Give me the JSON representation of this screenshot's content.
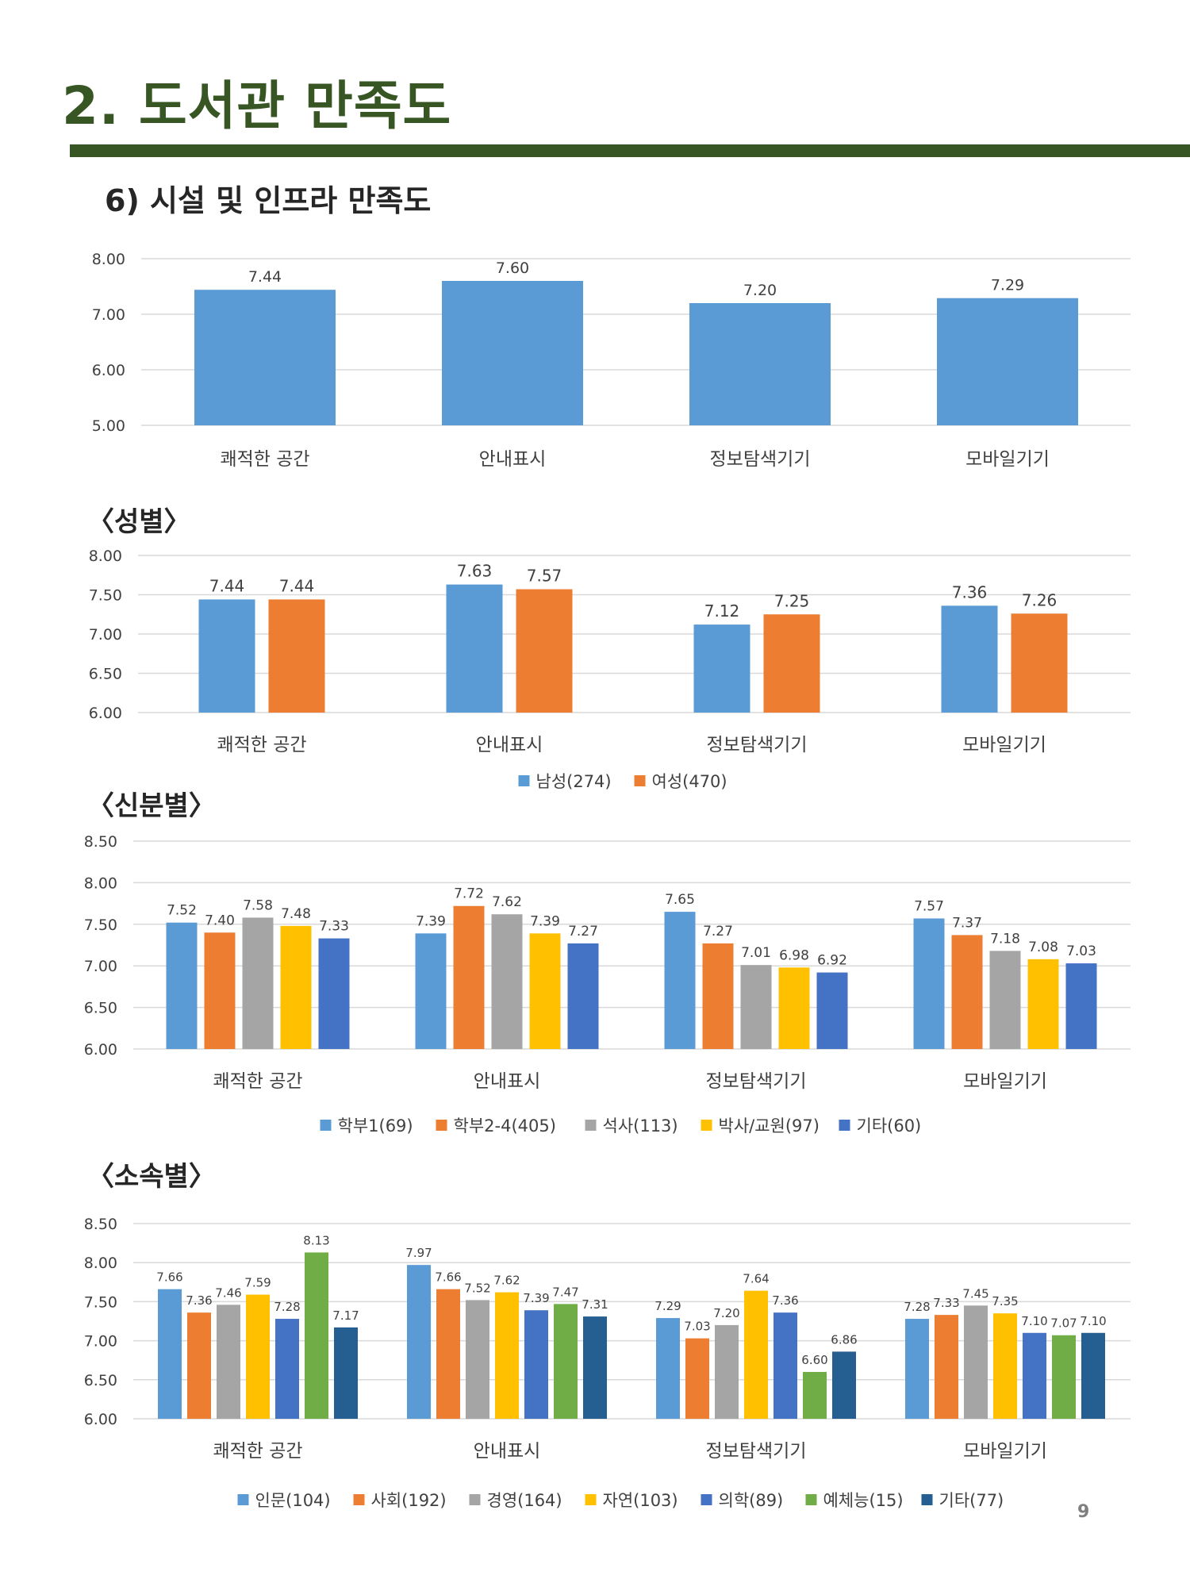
{
  "page": {
    "title": "2. 도서관 만족도",
    "subtitle": "6)  시설 및 인프라 만족도",
    "page_number": "9"
  },
  "sections": {
    "gender": "〈성별〉",
    "status": "〈신분별〉",
    "affiliation": "〈소속별〉"
  },
  "chart_data": [
    {
      "id": "overall",
      "type": "bar",
      "title": "",
      "categories": [
        "쾌적한 공간",
        "안내표시",
        "정보탐색기기",
        "모바일기기"
      ],
      "series": [
        {
          "name": "",
          "color": "#5b9bd5",
          "values": [
            7.44,
            7.6,
            7.2,
            7.29
          ]
        }
      ],
      "ylim": [
        5.0,
        8.0
      ],
      "ticks": [
        "5.00",
        "6.00",
        "7.00",
        "8.00"
      ],
      "tick_values": [
        5.0,
        6.0,
        7.0,
        8.0
      ],
      "legend": false,
      "grid": true
    },
    {
      "id": "gender",
      "type": "bar",
      "title": "〈성별〉",
      "categories": [
        "쾌적한 공간",
        "안내표시",
        "정보탐색기기",
        "모바일기기"
      ],
      "series": [
        {
          "name": "남성(274)",
          "color": "#5b9bd5",
          "values": [
            7.44,
            7.63,
            7.12,
            7.36
          ]
        },
        {
          "name": "여성(470)",
          "color": "#ed7d31",
          "values": [
            7.44,
            7.57,
            7.25,
            7.26
          ]
        }
      ],
      "ylim": [
        6.0,
        8.0
      ],
      "ticks": [
        "6.00",
        "6.50",
        "7.00",
        "7.50",
        "8.00"
      ],
      "tick_values": [
        6.0,
        6.5,
        7.0,
        7.5,
        8.0
      ],
      "legend": "bottom",
      "grid": true
    },
    {
      "id": "status",
      "type": "bar",
      "title": "〈신분별〉",
      "categories": [
        "쾌적한 공간",
        "안내표시",
        "정보탐색기기",
        "모바일기기"
      ],
      "series": [
        {
          "name": "학부1(69)",
          "color": "#5b9bd5",
          "values": [
            7.52,
            7.39,
            7.65,
            7.57
          ]
        },
        {
          "name": "학부2-4(405)",
          "color": "#ed7d31",
          "values": [
            7.4,
            7.72,
            7.27,
            7.37
          ]
        },
        {
          "name": "석사(113)",
          "color": "#a5a5a5",
          "values": [
            7.58,
            7.62,
            7.01,
            7.18
          ]
        },
        {
          "name": "박사/교원(97)",
          "color": "#ffc000",
          "values": [
            7.48,
            7.39,
            6.98,
            7.08
          ]
        },
        {
          "name": "기타(60)",
          "color": "#4472c4",
          "values": [
            7.33,
            7.27,
            6.92,
            7.03
          ]
        }
      ],
      "ylim": [
        6.0,
        8.5
      ],
      "ticks": [
        "6.00",
        "6.50",
        "7.00",
        "7.50",
        "8.00",
        "8.50"
      ],
      "tick_values": [
        6.0,
        6.5,
        7.0,
        7.5,
        8.0,
        8.5
      ],
      "legend": "bottom",
      "grid": true
    },
    {
      "id": "affiliation",
      "type": "bar",
      "title": "〈소속별〉",
      "categories": [
        "쾌적한 공간",
        "안내표시",
        "정보탐색기기",
        "모바일기기"
      ],
      "series": [
        {
          "name": "인문(104)",
          "color": "#5b9bd5",
          "values": [
            7.66,
            7.97,
            7.29,
            7.28
          ]
        },
        {
          "name": "사회(192)",
          "color": "#ed7d31",
          "values": [
            7.36,
            7.66,
            7.03,
            7.33
          ]
        },
        {
          "name": "경영(164)",
          "color": "#a5a5a5",
          "values": [
            7.46,
            7.52,
            7.2,
            7.45
          ]
        },
        {
          "name": "자연(103)",
          "color": "#ffc000",
          "values": [
            7.59,
            7.62,
            7.64,
            7.35
          ]
        },
        {
          "name": "의학(89)",
          "color": "#4472c4",
          "values": [
            7.28,
            7.39,
            7.36,
            7.1
          ]
        },
        {
          "name": "예체능(15)",
          "color": "#70ad47",
          "values": [
            8.13,
            7.47,
            6.6,
            7.07
          ]
        },
        {
          "name": "기타(77)",
          "color": "#255e91",
          "values": [
            7.17,
            7.31,
            6.86,
            7.1
          ]
        }
      ],
      "ylim": [
        6.0,
        8.5
      ],
      "ticks": [
        "6.00",
        "6.50",
        "7.00",
        "7.50",
        "8.00",
        "8.50"
      ],
      "tick_values": [
        6.0,
        6.5,
        7.0,
        7.5,
        8.0,
        8.5
      ],
      "legend": "bottom",
      "grid": true
    }
  ]
}
